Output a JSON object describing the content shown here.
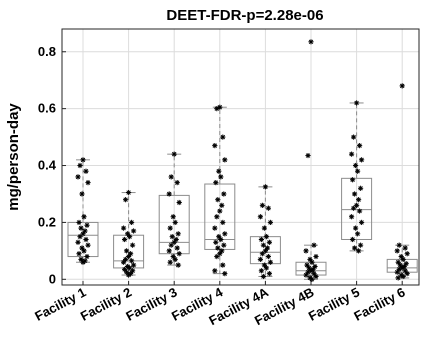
{
  "chart_data": {
    "type": "box",
    "title": "DEET-FDR-p=2.28e-06",
    "xlabel": "",
    "ylabel": "mg/person-day",
    "ylim": [
      -0.02,
      0.88
    ],
    "yticks": [
      0,
      0.2,
      0.4,
      0.6,
      0.8
    ],
    "ytick_labels": [
      "0",
      "0.2",
      "0.4",
      "0.6",
      "0.8"
    ],
    "grid": true,
    "categories": [
      "Facility 1",
      "Facility 2",
      "Facility 3",
      "Facility 4",
      "Facility 4A",
      "Facility 4B",
      "Facility 5",
      "Facility 6"
    ],
    "boxes": [
      {
        "q1": 0.08,
        "median": 0.155,
        "q3": 0.2,
        "whisker_low": 0.06,
        "whisker_high": 0.42
      },
      {
        "q1": 0.04,
        "median": 0.065,
        "q3": 0.155,
        "whisker_low": 0.015,
        "whisker_high": 0.305
      },
      {
        "q1": 0.09,
        "median": 0.13,
        "q3": 0.295,
        "whisker_low": 0.05,
        "whisker_high": 0.44
      },
      {
        "q1": 0.105,
        "median": 0.14,
        "q3": 0.335,
        "whisker_low": 0.02,
        "whisker_high": 0.605
      },
      {
        "q1": 0.055,
        "median": 0.095,
        "q3": 0.15,
        "whisker_low": 0.01,
        "whisker_high": 0.325
      },
      {
        "q1": 0.015,
        "median": 0.03,
        "q3": 0.06,
        "whisker_low": 0.0,
        "whisker_high": 0.12
      },
      {
        "q1": 0.14,
        "median": 0.245,
        "q3": 0.355,
        "whisker_low": 0.1,
        "whisker_high": 0.62
      },
      {
        "q1": 0.025,
        "median": 0.04,
        "q3": 0.07,
        "whisker_low": 0.005,
        "whisker_high": 0.12
      }
    ],
    "points": [
      [
        0.42,
        0.4,
        0.38,
        0.36,
        0.34,
        0.3,
        0.22,
        0.2,
        0.19,
        0.18,
        0.17,
        0.16,
        0.15,
        0.14,
        0.13,
        0.12,
        0.11,
        0.1,
        0.09,
        0.08,
        0.07,
        0.065,
        0.06
      ],
      [
        0.305,
        0.28,
        0.2,
        0.18,
        0.17,
        0.16,
        0.15,
        0.14,
        0.12,
        0.1,
        0.09,
        0.08,
        0.07,
        0.065,
        0.06,
        0.05,
        0.045,
        0.04,
        0.035,
        0.03,
        0.025,
        0.02,
        0.015
      ],
      [
        0.44,
        0.36,
        0.34,
        0.3,
        0.27,
        0.22,
        0.2,
        0.18,
        0.16,
        0.15,
        0.14,
        0.13,
        0.12,
        0.11,
        0.1,
        0.09,
        0.08,
        0.07,
        0.06,
        0.05
      ],
      [
        0.605,
        0.6,
        0.5,
        0.47,
        0.42,
        0.38,
        0.36,
        0.34,
        0.3,
        0.28,
        0.26,
        0.24,
        0.22,
        0.2,
        0.18,
        0.16,
        0.15,
        0.14,
        0.13,
        0.12,
        0.11,
        0.1,
        0.09,
        0.08,
        0.05,
        0.03,
        0.02
      ],
      [
        0.325,
        0.26,
        0.25,
        0.22,
        0.2,
        0.18,
        0.15,
        0.14,
        0.13,
        0.12,
        0.11,
        0.1,
        0.09,
        0.08,
        0.07,
        0.06,
        0.05,
        0.04,
        0.03,
        0.02,
        0.01
      ],
      [
        0.835,
        0.435,
        0.12,
        0.1,
        0.08,
        0.07,
        0.06,
        0.05,
        0.045,
        0.04,
        0.035,
        0.03,
        0.025,
        0.02,
        0.015,
        0.01,
        0.005,
        0.0
      ],
      [
        0.62,
        0.5,
        0.47,
        0.44,
        0.42,
        0.4,
        0.38,
        0.35,
        0.32,
        0.3,
        0.28,
        0.26,
        0.25,
        0.24,
        0.22,
        0.2,
        0.18,
        0.16,
        0.14,
        0.12,
        0.11,
        0.1
      ],
      [
        0.68,
        0.12,
        0.11,
        0.1,
        0.09,
        0.08,
        0.07,
        0.06,
        0.055,
        0.05,
        0.045,
        0.04,
        0.035,
        0.03,
        0.025,
        0.02,
        0.015,
        0.01,
        0.005
      ]
    ]
  }
}
